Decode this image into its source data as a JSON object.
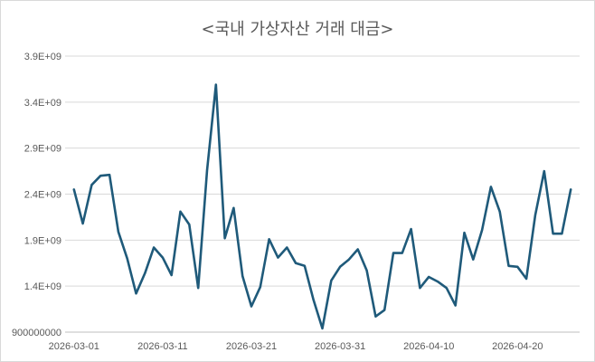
{
  "chart_data": {
    "type": "line",
    "title": "<국내 가상자산 거래 대금>",
    "xlabel": "",
    "ylabel": "",
    "ylim": [
      900000000,
      3900000000
    ],
    "y_ticks": [
      900000000,
      1400000000,
      1900000000,
      2400000000,
      2900000000,
      3400000000,
      3900000000
    ],
    "y_tick_labels": [
      "900000000",
      "1.4E+09",
      "1.9E+09",
      "2.4E+09",
      "2.9E+09",
      "3.4E+09",
      "3.9E+09"
    ],
    "x_tick_labels": [
      "2026-03-01",
      "2026-03-11",
      "2026-03-21",
      "2026-03-31",
      "2026-04-10",
      "2026-04-20"
    ],
    "x_start": "2026-03-01",
    "grid": true,
    "legend": "none",
    "color": "#1f5a7a",
    "series": [
      {
        "x": [
          "2026-03-01",
          "2026-03-02",
          "2026-03-03",
          "2026-03-04",
          "2026-03-05",
          "2026-03-06",
          "2026-03-07",
          "2026-03-08",
          "2026-03-09",
          "2026-03-10",
          "2026-03-11",
          "2026-03-12",
          "2026-03-13",
          "2026-03-14",
          "2026-03-15",
          "2026-03-16",
          "2026-03-17",
          "2026-03-18",
          "2026-03-19",
          "2026-03-20",
          "2026-03-21",
          "2026-03-22",
          "2026-03-23",
          "2026-03-24",
          "2026-03-25",
          "2026-03-26",
          "2026-03-27",
          "2026-03-28",
          "2026-03-29",
          "2026-03-30",
          "2026-03-31",
          "2026-04-01",
          "2026-04-02",
          "2026-04-03",
          "2026-04-04",
          "2026-04-05",
          "2026-04-06",
          "2026-04-07",
          "2026-04-08",
          "2026-04-09",
          "2026-04-10",
          "2026-04-11",
          "2026-04-12",
          "2026-04-13",
          "2026-04-14",
          "2026-04-15",
          "2026-04-16",
          "2026-04-17",
          "2026-04-18",
          "2026-04-19",
          "2026-04-20",
          "2026-04-21",
          "2026-04-22",
          "2026-04-23",
          "2026-04-24",
          "2026-04-25",
          "2026-04-26"
        ],
        "values": [
          2450000000,
          2080000000,
          2500000000,
          2600000000,
          2610000000,
          1990000000,
          1700000000,
          1320000000,
          1540000000,
          1820000000,
          1710000000,
          1520000000,
          2210000000,
          2070000000,
          1380000000,
          2660000000,
          3590000000,
          1920000000,
          2250000000,
          1510000000,
          1180000000,
          1390000000,
          1910000000,
          1710000000,
          1820000000,
          1650000000,
          1620000000,
          1250000000,
          940000000,
          1460000000,
          1610000000,
          1690000000,
          1800000000,
          1570000000,
          1070000000,
          1140000000,
          1760000000,
          1760000000,
          2020000000,
          1380000000,
          1500000000,
          1450000000,
          1380000000,
          1190000000,
          1980000000,
          1690000000,
          2010000000,
          2480000000,
          2210000000,
          1620000000,
          1610000000,
          1480000000,
          2170000000,
          2650000000,
          1970000000,
          1970000000,
          2450000000
        ]
      }
    ]
  }
}
